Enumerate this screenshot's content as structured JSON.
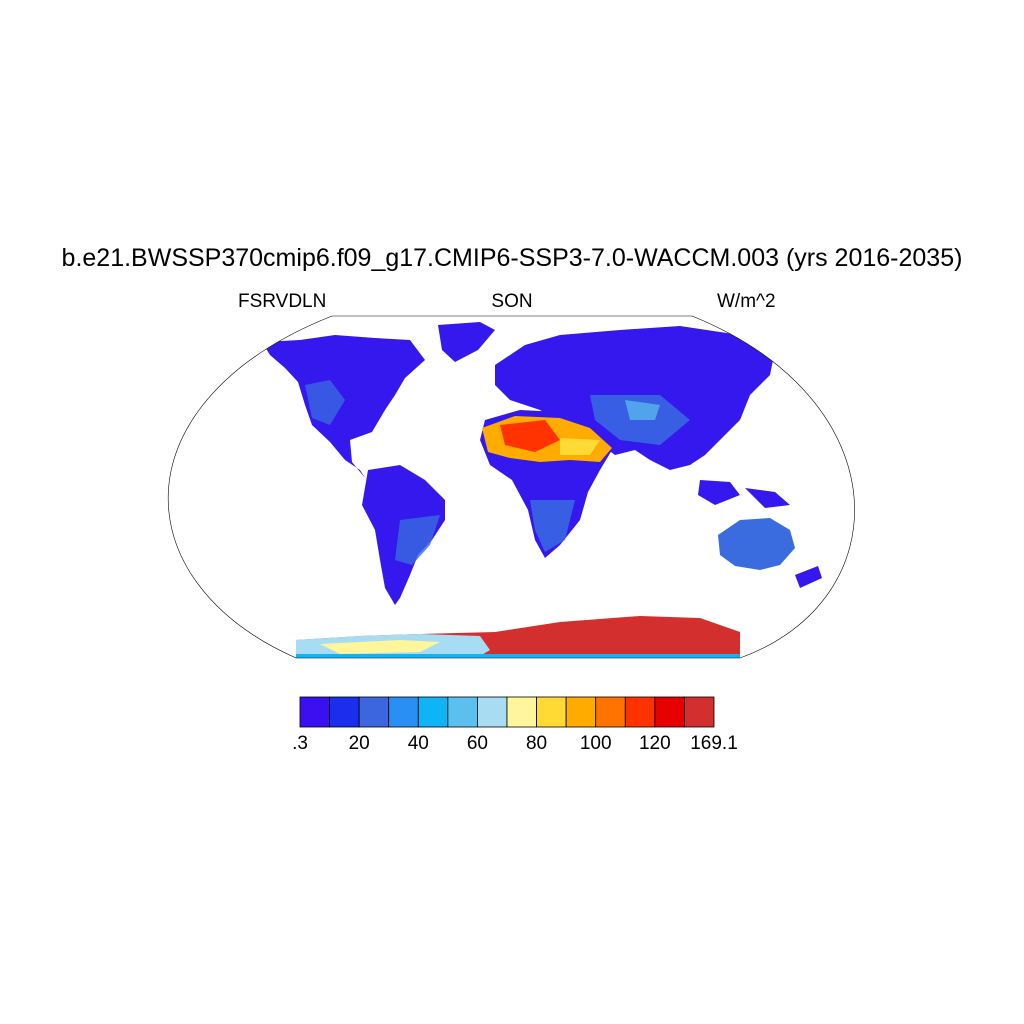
{
  "title": "b.e21.BWSSP370cmip6.f09_g17.CMIP6-SSP3-7.0-WACCM.003 (yrs 2016-2035)",
  "subtitle": {
    "left": "FSRVDLN",
    "center": "SON",
    "right": "W/m^2"
  },
  "colorbar": {
    "colors": [
      "#3a10f0",
      "#1b2ded",
      "#3c66e0",
      "#2a8ff5",
      "#0fb4f5",
      "#5cc0ef",
      "#a8dcf3",
      "#fff59a",
      "#ffd934",
      "#ffab00",
      "#ff7300",
      "#ff3200",
      "#e60000",
      "#d32f2f"
    ],
    "labels": [
      ".3",
      "20",
      "40",
      "60",
      "80",
      "100",
      "120",
      "169.1"
    ]
  }
}
